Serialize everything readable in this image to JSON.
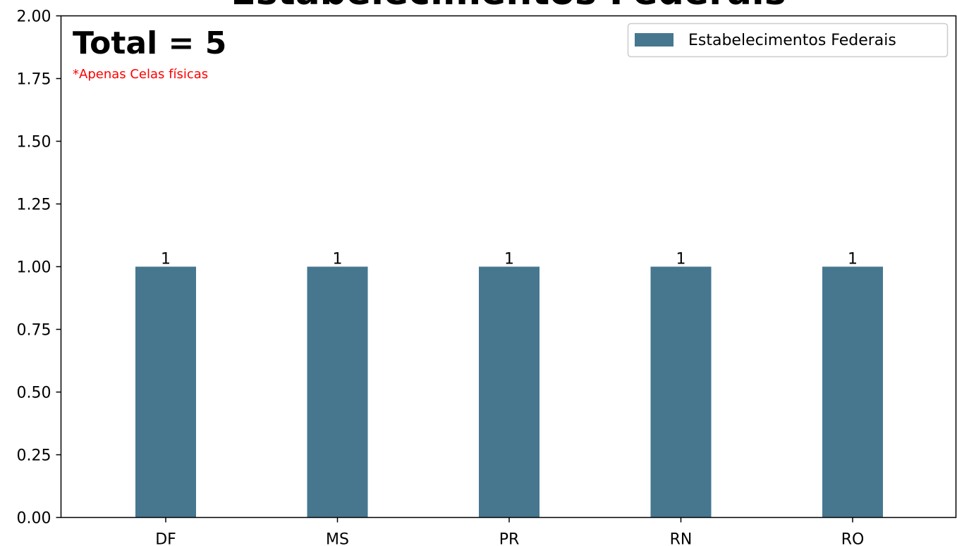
{
  "chart_data": {
    "type": "bar",
    "title": "Estabelecimentos Federais",
    "categories": [
      "DF",
      "MS",
      "PR",
      "RN",
      "RO"
    ],
    "series": [
      {
        "name": "Estabelecimentos Federais",
        "values": [
          1,
          1,
          1,
          1,
          1
        ],
        "color": "#46778f"
      }
    ],
    "data_labels": [
      "1",
      "1",
      "1",
      "1",
      "1"
    ],
    "ylim": [
      0,
      2
    ],
    "yticks": [
      "0.00",
      "0.25",
      "0.50",
      "0.75",
      "1.00",
      "1.25",
      "1.50",
      "1.75",
      "2.00"
    ],
    "ytick_values": [
      0,
      0.25,
      0.5,
      0.75,
      1,
      1.25,
      1.5,
      1.75,
      2
    ],
    "xlabel": "",
    "ylabel": "",
    "grid": false,
    "legend_position": "top-right",
    "annotations": {
      "total": "Total = 5",
      "note": "*Apenas Celas físicas",
      "note_color": "#ff0000"
    }
  }
}
